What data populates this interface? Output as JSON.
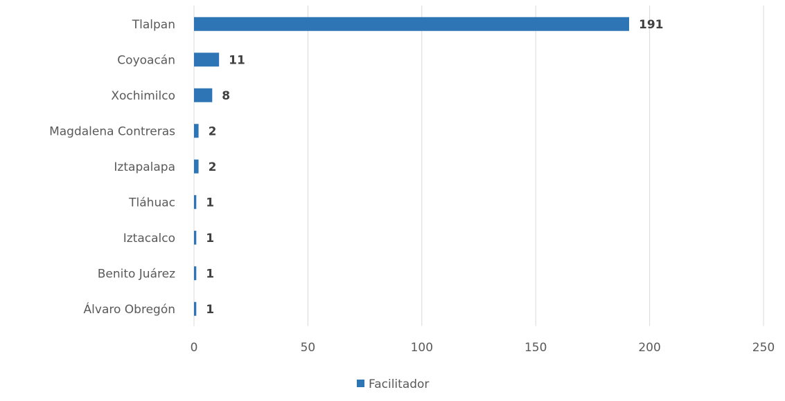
{
  "chart_data": {
    "type": "bar",
    "orientation": "horizontal",
    "categories": [
      "Tlalpan",
      "Coyoacán",
      "Xochimilco",
      "Magdalena Contreras",
      "Iztapalapa",
      "Tláhuac",
      "Iztacalco",
      "Benito Juárez",
      "Álvaro Obregón"
    ],
    "series": [
      {
        "name": "Facilitador",
        "values": [
          191,
          11,
          8,
          2,
          2,
          1,
          1,
          1,
          1
        ]
      }
    ],
    "data_labels": [
      "191",
      "11",
      "8",
      "2",
      "2",
      "1",
      "1",
      "1",
      "1"
    ],
    "xlim": [
      0,
      250
    ],
    "x_ticks": [
      "0",
      "50",
      "100",
      "150",
      "200",
      "250"
    ],
    "grid": true,
    "legend_position": "bottom",
    "bar_color": "#2e75b6"
  }
}
